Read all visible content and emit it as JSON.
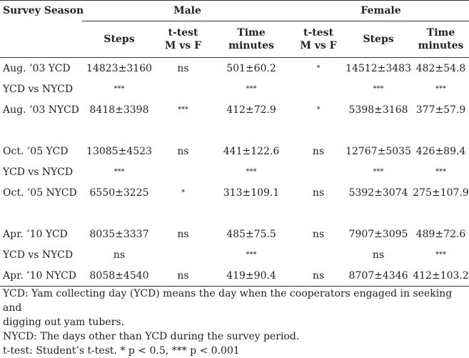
{
  "header": {
    "season": "Survey Season",
    "male": "Male",
    "female": "Female"
  },
  "subheader": {
    "male_steps": "Steps",
    "male_ttest_1": "t-test",
    "male_ttest_2": "M vs F",
    "male_time_1": "Time",
    "male_time_2": "minutes",
    "female_ttest_1": "t-test",
    "female_ttest_2": "M vs F",
    "female_steps": "Steps",
    "female_time_1": "Time",
    "female_time_2": "minutes"
  },
  "rows": [
    {
      "label": "Aug. ’03 YCD",
      "m_steps": "14823±3160",
      "t1": "ns",
      "m_time": "501±60.2",
      "t2": "*",
      "f_steps": "14512±3483",
      "f_time": "482±54.8"
    },
    {
      "label": "YCD vs NYCD",
      "m_steps": "***",
      "t1": "",
      "m_time": "***",
      "t2": "",
      "f_steps": "***",
      "f_time": "***"
    },
    {
      "label": "Aug. ’03 NYCD",
      "m_steps": "8418±3398",
      "t1": "***",
      "m_time": "412±72.9",
      "t2": "*",
      "f_steps": "5398±3168",
      "f_time": "377±57.9"
    },
    {
      "label": "Oct. ’05 YCD",
      "m_steps": "13085±4523",
      "t1": "ns",
      "m_time": "441±122.6",
      "t2": "ns",
      "f_steps": "12767±5035",
      "f_time": "426±89.4"
    },
    {
      "label": "YCD vs NYCD",
      "m_steps": "***",
      "t1": "",
      "m_time": "***",
      "t2": "",
      "f_steps": "***",
      "f_time": "***"
    },
    {
      "label": "Oct. ’05 NYCD",
      "m_steps": "6550±3225",
      "t1": "*",
      "m_time": "313±109.1",
      "t2": "ns",
      "f_steps": "5392±3074",
      "f_time": "275±107.9"
    },
    {
      "label": "Apr. ’10 YCD",
      "m_steps": "8035±3337",
      "t1": "ns",
      "m_time": "485±75.5",
      "t2": "ns",
      "f_steps": "7907±3095",
      "f_time": "489±72.6"
    },
    {
      "label": "YCD vs NYCD",
      "m_steps": "ns",
      "t1": "",
      "m_time": "***",
      "t2": "",
      "f_steps": "ns",
      "f_time": "***"
    },
    {
      "label": "Apr. ’10 NYCD",
      "m_steps": "8058±4540",
      "t1": "ns",
      "m_time": "419±90.4",
      "t2": "ns",
      "f_steps": "8707±4346",
      "f_time": "412±103.2"
    }
  ],
  "notes": [
    "YCD: Yam collecting day (YCD) means the day when the cooperators engaged in seeking and",
    "digging out yam tubers.",
    "NYCD: The days other than YCD during the survey period.",
    "t-test: Student’s t-test. * p < 0.5, *** p < 0.001"
  ]
}
